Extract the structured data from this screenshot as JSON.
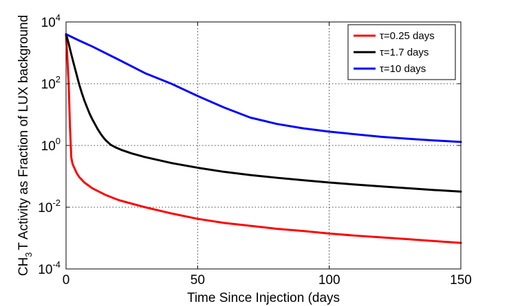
{
  "chart_data": {
    "type": "line",
    "xlabel": "Time Since Injection (days",
    "ylabel": {
      "prefix": "CH",
      "subscript": "3",
      "suffix": "T Activity as Fraction of LUX background"
    },
    "xlim": [
      0,
      150
    ],
    "ylim": [
      0.0001,
      10000
    ],
    "yscale": "log",
    "grid": true,
    "x_ticks": [
      0,
      50,
      100,
      150
    ],
    "x_tick_labels": [
      "0",
      "50",
      "100",
      "150"
    ],
    "y_ticks": [
      {
        "value": 0.0001,
        "base": "10",
        "exp": "-4"
      },
      {
        "value": 0.01,
        "base": "10",
        "exp": "-2"
      },
      {
        "value": 1,
        "base": "10",
        "exp": "0"
      },
      {
        "value": 100,
        "base": "10",
        "exp": "2"
      },
      {
        "value": 10000,
        "base": "10",
        "exp": "4"
      }
    ],
    "legend_position": "top-right",
    "series": [
      {
        "name": "τ=0.25 days",
        "color": "#ff0000",
        "x": [
          0,
          0.5,
          1,
          1.5,
          2,
          2.5,
          3,
          4,
          5,
          7,
          10,
          15,
          20,
          25,
          30,
          40,
          50,
          60,
          70,
          80,
          90,
          100,
          110,
          120,
          130,
          140,
          150
        ],
        "y": [
          4000,
          700,
          100,
          4,
          0.4,
          0.25,
          0.2,
          0.13,
          0.095,
          0.063,
          0.041,
          0.025,
          0.017,
          0.013,
          0.01,
          0.0063,
          0.0042,
          0.0031,
          0.0025,
          0.002,
          0.0017,
          0.0014,
          0.0012,
          0.00105,
          0.00092,
          0.0008,
          0.0007
        ]
      },
      {
        "name": "τ=1.7 days",
        "color": "#000000",
        "x": [
          0,
          1,
          2,
          3,
          4,
          5,
          6,
          7,
          8,
          9,
          10,
          11,
          12,
          13,
          14,
          15,
          17,
          19,
          21,
          25,
          30,
          40,
          50,
          60,
          70,
          80,
          90,
          100,
          110,
          120,
          130,
          140,
          150
        ],
        "y": [
          4000,
          2000,
          900,
          420,
          200,
          95,
          50,
          28,
          17,
          10.5,
          7,
          4.9,
          3.4,
          2.5,
          1.9,
          1.5,
          1.05,
          0.85,
          0.72,
          0.55,
          0.42,
          0.27,
          0.19,
          0.14,
          0.11,
          0.09,
          0.075,
          0.063,
          0.054,
          0.047,
          0.041,
          0.036,
          0.032
        ]
      },
      {
        "name": "τ=10 days",
        "color": "#0000ff",
        "x": [
          0,
          5,
          10,
          20,
          30,
          40,
          50,
          60,
          70,
          80,
          90,
          100,
          110,
          120,
          130,
          140,
          150
        ],
        "y": [
          4000,
          2500,
          1600,
          600,
          220,
          100,
          40,
          17,
          8,
          5,
          3.6,
          2.8,
          2.3,
          1.9,
          1.65,
          1.45,
          1.3
        ]
      }
    ]
  }
}
